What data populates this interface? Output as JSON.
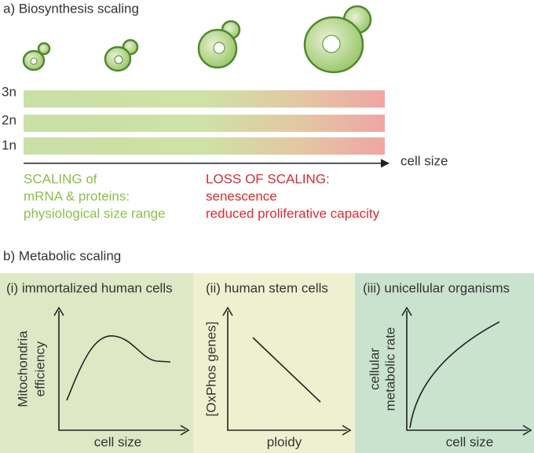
{
  "panel_a": {
    "title": "a) Biosynthesis scaling",
    "ploidy_labels": [
      "3n",
      "2n",
      "1n"
    ],
    "axis_label": "cell size",
    "scaling_text": [
      "SCALING of",
      "mRNA & proteins:",
      "physiological size range"
    ],
    "loss_text": [
      "LOSS OF SCALING:",
      "senescence",
      "reduced proliferative capacity"
    ]
  },
  "panel_b": {
    "title": "b) Metabolic scaling",
    "plots": [
      {
        "title": "(i) immortalized human cells",
        "y_label": [
          "Mitochondria",
          "efficiency"
        ],
        "x_label": "cell size"
      },
      {
        "title": "(ii) human stem cells",
        "y_label": [
          "[OxPhos genes]"
        ],
        "x_label": "ploidy"
      },
      {
        "title": "(iii) unicellular organisms",
        "y_label": [
          "cellular",
          "metabolic rate"
        ],
        "x_label": "cell size"
      }
    ]
  }
}
